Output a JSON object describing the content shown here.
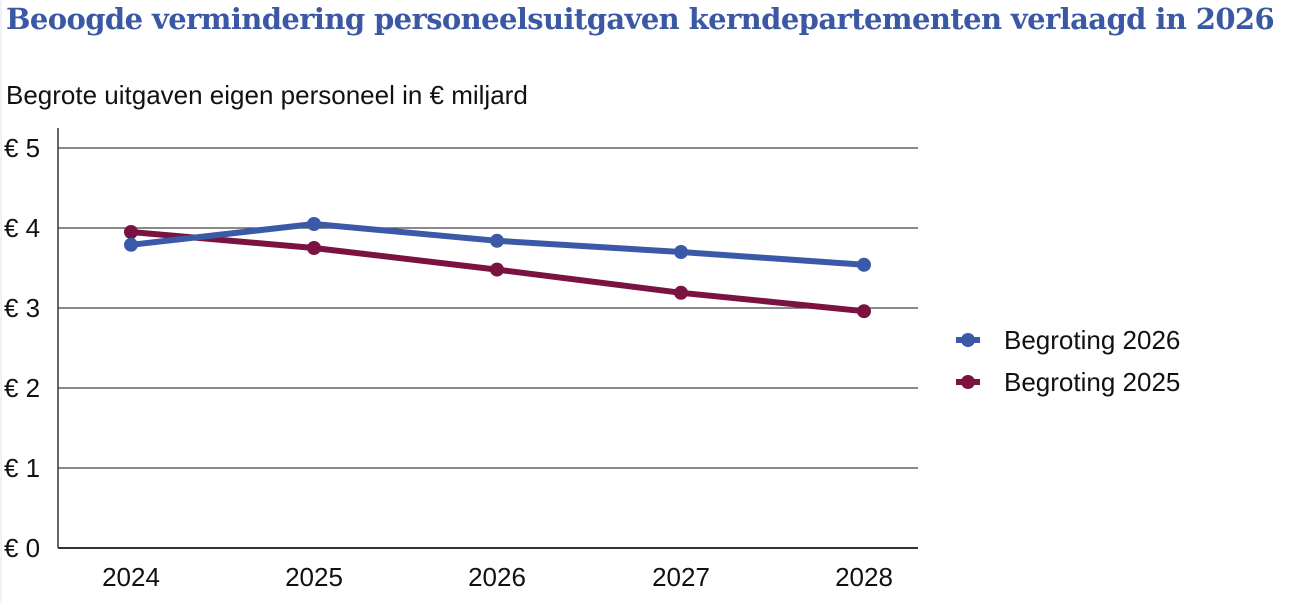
{
  "chart_data": {
    "type": "line",
    "title": "Beoogde vermindering personeelsuitgaven kerndepartementen verlaagd in 2026",
    "subtitle": "Begrote uitgaven eigen personeel in € miljard",
    "xlabel": "",
    "ylabel": "",
    "categories": [
      "2024",
      "2025",
      "2026",
      "2027",
      "2028"
    ],
    "ylim": [
      0,
      5
    ],
    "yticks": [
      0,
      1,
      2,
      3,
      4,
      5
    ],
    "ytick_labels": [
      "€ 0",
      "€ 1",
      "€ 2",
      "€ 3",
      "€ 4",
      "€ 5"
    ],
    "grid": true,
    "legend_position": "right",
    "series": [
      {
        "name": "Begroting 2026",
        "color": "#3a5aa8",
        "values": [
          3.79,
          4.05,
          3.84,
          3.7,
          3.54
        ]
      },
      {
        "name": "Begroting 2025",
        "color": "#7a1242",
        "values": [
          3.95,
          3.75,
          3.48,
          3.19,
          2.96
        ]
      }
    ]
  }
}
